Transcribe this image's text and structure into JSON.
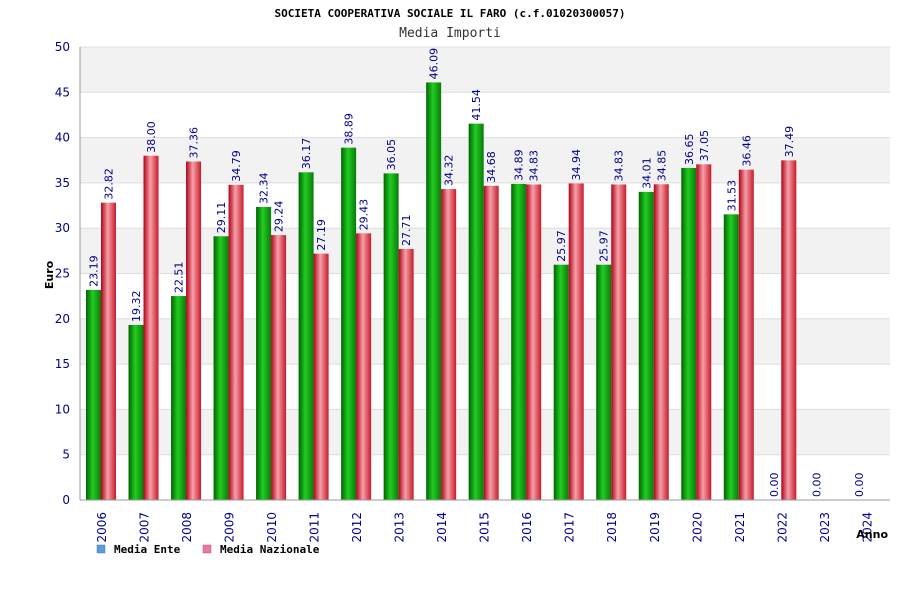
{
  "chart_data": {
    "type": "bar",
    "title": "SOCIETA COOPERATIVA SOCIALE IL FARO (c.f.01020300057)",
    "subtitle": "Media Importi",
    "xlabel": "Anno",
    "ylabel": "Euro",
    "ylim": [
      0,
      50
    ],
    "yticks": [
      0,
      5,
      10,
      15,
      20,
      25,
      30,
      35,
      40,
      45,
      50
    ],
    "grid": true,
    "legend_position": "bottom-left",
    "categories": [
      "2006",
      "2007",
      "2008",
      "2009",
      "2010",
      "2011",
      "2012",
      "2013",
      "2014",
      "2015",
      "2016",
      "2017",
      "2018",
      "2019",
      "2020",
      "2021",
      "2022",
      "2023",
      "2024"
    ],
    "series": [
      {
        "name": "Media Ente",
        "legend_color": "#5b9bd5",
        "bar_color": "#22b022",
        "values": [
          23.19,
          19.32,
          22.51,
          29.11,
          32.34,
          36.17,
          38.89,
          36.05,
          46.09,
          41.54,
          34.89,
          25.97,
          25.97,
          34.01,
          36.65,
          31.53,
          0,
          0,
          0
        ],
        "labels": [
          "23.19",
          "19.32",
          "22.51",
          "29.11",
          "32.34",
          "36.17",
          "38.89",
          "36.05",
          "46.09",
          "41.54",
          "34.89",
          "25.97",
          "25.97",
          "34.01",
          "36.65",
          "31.53",
          "0.00",
          "0.00",
          "0.00"
        ]
      },
      {
        "name": "Media Nazionale",
        "legend_color": "#e87aa0",
        "bar_color": "#e8424f",
        "values": [
          32.82,
          38.0,
          37.36,
          34.79,
          29.24,
          27.19,
          29.43,
          27.71,
          34.32,
          34.68,
          34.83,
          34.94,
          34.83,
          34.85,
          37.05,
          36.46,
          37.49,
          null,
          null
        ],
        "labels": [
          "32.82",
          "38.00",
          "37.36",
          "34.79",
          "29.24",
          "27.19",
          "29.43",
          "27.71",
          "34.32",
          "34.68",
          "34.83",
          "34.94",
          "34.83",
          "34.85",
          "37.05",
          "36.46",
          "37.49",
          null,
          null
        ]
      }
    ]
  }
}
